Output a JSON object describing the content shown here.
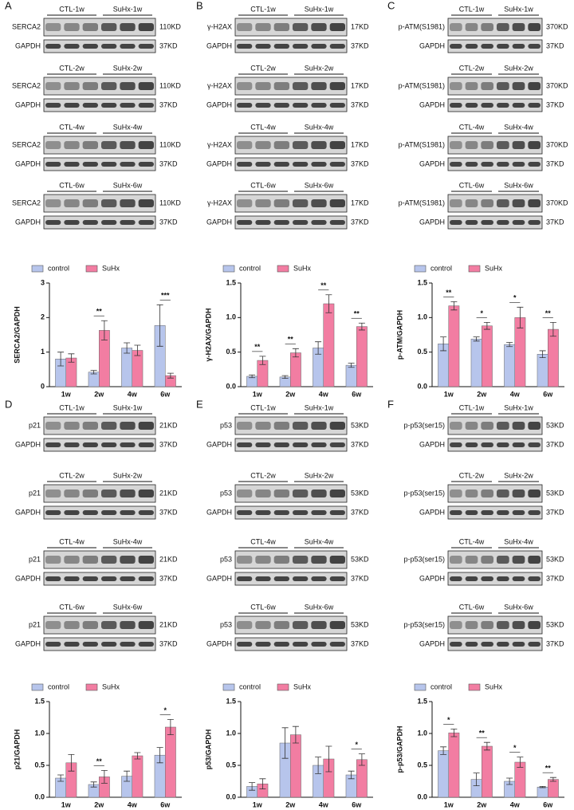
{
  "panels": [
    {
      "letter": "A",
      "groups": [
        {
          "ctl": "CTL-1w",
          "suhx": "SuHx-1w",
          "rows": [
            {
              "label": "SERCA2",
              "size": "110KD"
            },
            {
              "label": "GAPDH",
              "size": "37KD"
            }
          ]
        },
        {
          "ctl": "CTL-2w",
          "suhx": "SuHx-2w",
          "rows": [
            {
              "label": "SERCA2",
              "size": "110KD"
            },
            {
              "label": "GAPDH",
              "size": "37KD"
            }
          ]
        },
        {
          "ctl": "CTL-4w",
          "suhx": "SuHx-4w",
          "rows": [
            {
              "label": "SERCA2",
              "size": "110KD"
            },
            {
              "label": "GAPDH",
              "size": "37KD"
            }
          ]
        },
        {
          "ctl": "CTL-6w",
          "suhx": "SuHx-6w",
          "rows": [
            {
              "label": "SERCA2",
              "size": "110KD"
            },
            {
              "label": "GAPDH",
              "size": "37KD"
            }
          ]
        }
      ]
    },
    {
      "letter": "B",
      "groups": [
        {
          "ctl": "CTL-1w",
          "suhx": "SuHx-1w",
          "rows": [
            {
              "label": "γ-H2AX",
              "size": "17KD"
            },
            {
              "label": "GAPDH",
              "size": "37KD"
            }
          ]
        },
        {
          "ctl": "CTL-2w",
          "suhx": "SuHx-2w",
          "rows": [
            {
              "label": "γ-H2AX",
              "size": "17KD"
            },
            {
              "label": "GAPDH",
              "size": "37KD"
            }
          ]
        },
        {
          "ctl": "CTL-4w",
          "suhx": "SuHx-4w",
          "rows": [
            {
              "label": "γ-H2AX",
              "size": "17KD"
            },
            {
              "label": "GAPDH",
              "size": "37KD"
            }
          ]
        },
        {
          "ctl": "CTL-6w",
          "suhx": "SuHx-6w",
          "rows": [
            {
              "label": "γ-H2AX",
              "size": "17KD"
            },
            {
              "label": "GAPDH",
              "size": "37KD"
            }
          ]
        }
      ]
    },
    {
      "letter": "C",
      "groups": [
        {
          "ctl": "CTL-1w",
          "suhx": "SuHx-1w",
          "rows": [
            {
              "label": "p-ATM(S1981)",
              "size": "370KD"
            },
            {
              "label": "GAPDH",
              "size": "37KD"
            }
          ]
        },
        {
          "ctl": "CTL-2w",
          "suhx": "SuHx-2w",
          "rows": [
            {
              "label": "p-ATM(S1981)",
              "size": "370KD"
            },
            {
              "label": "GAPDH",
              "size": "37KD"
            }
          ]
        },
        {
          "ctl": "CTL-4w",
          "suhx": "SuHx-4w",
          "rows": [
            {
              "label": "p-ATM(S1981)",
              "size": "370KD"
            },
            {
              "label": "GAPDH",
              "size": "37KD"
            }
          ]
        },
        {
          "ctl": "CTL-6w",
          "suhx": "SuHx-6w",
          "rows": [
            {
              "label": "p-ATM(S1981)",
              "size": "370KD"
            },
            {
              "label": "GAPDH",
              "size": "37KD"
            }
          ]
        }
      ]
    },
    {
      "letter": "D",
      "groups": [
        {
          "ctl": "CTL-1w",
          "suhx": "SuHx-1w",
          "rows": [
            {
              "label": "p21",
              "size": "21KD"
            },
            {
              "label": "GAPDH",
              "size": "37KD"
            }
          ]
        },
        {
          "ctl": "CTL-2w",
          "suhx": "SuHx-2w",
          "rows": [
            {
              "label": "p21",
              "size": "21KD"
            },
            {
              "label": "GAPDH",
              "size": "37KD"
            }
          ]
        },
        {
          "ctl": "CTL-4w",
          "suhx": "SuHx-4w",
          "rows": [
            {
              "label": "p21",
              "size": "21KD"
            },
            {
              "label": "GAPDH",
              "size": "37KD"
            }
          ]
        },
        {
          "ctl": "CTL-6w",
          "suhx": "SuHx-6w",
          "rows": [
            {
              "label": "p21",
              "size": "21KD"
            },
            {
              "label": "GAPDH",
              "size": "37KD"
            }
          ]
        }
      ]
    },
    {
      "letter": "E",
      "groups": [
        {
          "ctl": "CTL-1w",
          "suhx": "SuHx-1w",
          "rows": [
            {
              "label": "p53",
              "size": "53KD"
            },
            {
              "label": "GAPDH",
              "size": "37KD"
            }
          ]
        },
        {
          "ctl": "CTL-2w",
          "suhx": "SuHx-2w",
          "rows": [
            {
              "label": "p53",
              "size": "53KD"
            },
            {
              "label": "GAPDH",
              "size": "37KD"
            }
          ]
        },
        {
          "ctl": "CTL-4w",
          "suhx": "SuHx-4w",
          "rows": [
            {
              "label": "p53",
              "size": "53KD"
            },
            {
              "label": "GAPDH",
              "size": "37KD"
            }
          ]
        },
        {
          "ctl": "CTL-6w",
          "suhx": "SuHx-6w",
          "rows": [
            {
              "label": "p53",
              "size": "53KD"
            },
            {
              "label": "GAPDH",
              "size": "37KD"
            }
          ]
        }
      ]
    },
    {
      "letter": "F",
      "groups": [
        {
          "ctl": "CTL-1w",
          "suhx": "SuHx-1w",
          "rows": [
            {
              "label": "p-p53(ser15)",
              "size": "53KD"
            },
            {
              "label": "GAPDH",
              "size": "37KD"
            }
          ]
        },
        {
          "ctl": "CTL-2w",
          "suhx": "SuHx-2w",
          "rows": [
            {
              "label": "p-p53(ser15)",
              "size": "53KD"
            },
            {
              "label": "GAPDH",
              "size": "37KD"
            }
          ]
        },
        {
          "ctl": "CTL-4w",
          "suhx": "SuHx-4w",
          "rows": [
            {
              "label": "p-p53(ser15)",
              "size": "53KD"
            },
            {
              "label": "GAPDH",
              "size": "37KD"
            }
          ]
        },
        {
          "ctl": "CTL-6w",
          "suhx": "SuHx-6w",
          "rows": [
            {
              "label": "p-p53(ser15)",
              "size": "53KD"
            },
            {
              "label": "GAPDH",
              "size": "37KD"
            }
          ]
        }
      ]
    }
  ],
  "chart_data": [
    {
      "type": "bar",
      "y_label": "SERCA2/GAPDH",
      "categories": [
        "1w",
        "2w",
        "4w",
        "6w"
      ],
      "ylim": [
        0,
        3
      ],
      "yticks": [
        0,
        1,
        2,
        3
      ],
      "series": [
        {
          "name": "control",
          "color": "#b7c5ec",
          "values": [
            0.8,
            0.42,
            1.12,
            1.77
          ],
          "errors": [
            0.2,
            0.05,
            0.15,
            0.6
          ]
        },
        {
          "name": "SuHx",
          "color": "#f27da2",
          "values": [
            0.83,
            1.63,
            1.05,
            0.32
          ],
          "errors": [
            0.12,
            0.28,
            0.15,
            0.07
          ]
        }
      ],
      "significance": [
        null,
        "**",
        null,
        "***"
      ]
    },
    {
      "type": "bar",
      "y_label": "γ-H2AX/GAPDH",
      "categories": [
        "1w",
        "2w",
        "4w",
        "6w"
      ],
      "ylim": [
        0,
        1.5
      ],
      "yticks": [
        {
          "value": 0,
          "label": "0.0"
        },
        0.5,
        {
          "value": 1,
          "label": "1.0"
        },
        1.5
      ],
      "series": [
        {
          "name": "control",
          "color": "#b7c5ec",
          "values": [
            0.15,
            0.14,
            0.56,
            0.31
          ],
          "errors": [
            0.02,
            0.02,
            0.09,
            0.03
          ]
        },
        {
          "name": "SuHx",
          "color": "#f27da2",
          "values": [
            0.38,
            0.49,
            1.2,
            0.87
          ],
          "errors": [
            0.06,
            0.06,
            0.13,
            0.05
          ]
        }
      ],
      "significance": [
        "**",
        "**",
        "**",
        "**"
      ]
    },
    {
      "type": "bar",
      "y_label": "p-ATM/GAPDH",
      "categories": [
        "1w",
        "2w",
        "4w",
        "6w"
      ],
      "ylim": [
        0,
        1.5
      ],
      "yticks": [
        {
          "value": 0,
          "label": "0.0"
        },
        0.5,
        {
          "value": 1,
          "label": "1.0"
        },
        1.5
      ],
      "series": [
        {
          "name": "control",
          "color": "#b7c5ec",
          "values": [
            0.62,
            0.69,
            0.61,
            0.47
          ],
          "errors": [
            0.1,
            0.03,
            0.03,
            0.05
          ]
        },
        {
          "name": "SuHx",
          "color": "#f27da2",
          "values": [
            1.17,
            0.88,
            1.0,
            0.83
          ],
          "errors": [
            0.06,
            0.05,
            0.15,
            0.1
          ]
        }
      ],
      "significance": [
        "**",
        "*",
        "*",
        "**"
      ]
    },
    {
      "type": "bar",
      "y_label": "p21/GAPDH",
      "categories": [
        "1w",
        "2w",
        "4w",
        "6w"
      ],
      "ylim": [
        0,
        1.5
      ],
      "yticks": [
        {
          "value": 0,
          "label": "0.0"
        },
        0.5,
        {
          "value": 1,
          "label": "1.0"
        },
        1.5
      ],
      "series": [
        {
          "name": "control",
          "color": "#b7c5ec",
          "values": [
            0.3,
            0.2,
            0.33,
            0.66
          ],
          "errors": [
            0.05,
            0.04,
            0.08,
            0.12
          ]
        },
        {
          "name": "SuHx",
          "color": "#f27da2",
          "values": [
            0.54,
            0.32,
            0.65,
            1.1
          ],
          "errors": [
            0.13,
            0.1,
            0.05,
            0.12
          ]
        }
      ],
      "significance": [
        null,
        "**",
        null,
        "*"
      ]
    },
    {
      "type": "bar",
      "y_label": "p53/GAPDH",
      "categories": [
        "1w",
        "2w",
        "4w",
        "6w"
      ],
      "ylim": [
        0,
        1.5
      ],
      "yticks": [
        {
          "value": 0,
          "label": "0.0"
        },
        0.5,
        {
          "value": 1,
          "label": "1.0"
        },
        1.5
      ],
      "series": [
        {
          "name": "control",
          "color": "#b7c5ec",
          "values": [
            0.17,
            0.85,
            0.5,
            0.35
          ],
          "errors": [
            0.06,
            0.24,
            0.13,
            0.06
          ]
        },
        {
          "name": "SuHx",
          "color": "#f27da2",
          "values": [
            0.21,
            0.98,
            0.6,
            0.59
          ],
          "errors": [
            0.08,
            0.13,
            0.2,
            0.09
          ]
        }
      ],
      "significance": [
        null,
        null,
        null,
        "*"
      ]
    },
    {
      "type": "bar",
      "y_label": "p-p53/GAPDH",
      "categories": [
        "1w",
        "2w",
        "4w",
        "6w"
      ],
      "ylim": [
        0,
        1.5
      ],
      "yticks": [
        {
          "value": 0,
          "label": "0.0"
        },
        0.5,
        {
          "value": 1,
          "label": "1.0"
        },
        1.5
      ],
      "series": [
        {
          "name": "control",
          "color": "#b7c5ec",
          "values": [
            0.73,
            0.28,
            0.25,
            0.16
          ],
          "errors": [
            0.06,
            0.1,
            0.05,
            0.01
          ]
        },
        {
          "name": "SuHx",
          "color": "#f27da2",
          "values": [
            1.01,
            0.8,
            0.55,
            0.28
          ],
          "errors": [
            0.06,
            0.06,
            0.08,
            0.03
          ]
        }
      ],
      "significance": [
        "*",
        "**",
        "*",
        "**"
      ]
    }
  ]
}
